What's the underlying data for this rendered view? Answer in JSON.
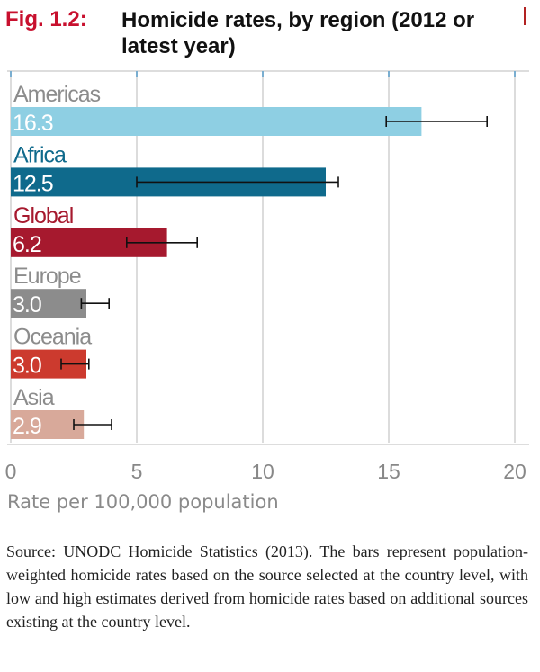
{
  "figure": {
    "label": "Fig. 1.2:",
    "title": "Homicide rates, by region (2012 or latest year)",
    "source": "Source: UNODC Homicide Statistics (2013). The bars represent population-weighted homicide rates based on the source selected at the country level, with low and high estimates derived from homicide rates based on additional sources existing at the country level."
  },
  "chart_data": {
    "type": "bar",
    "orientation": "horizontal",
    "xlabel": "Rate per 100,000 population",
    "xlim": [
      0,
      20
    ],
    "xticks": [
      0,
      5,
      10,
      15,
      20
    ],
    "grid": true,
    "categories": [
      "Americas",
      "Africa",
      "Global",
      "Europe",
      "Oceania",
      "Asia"
    ],
    "values": [
      16.3,
      12.5,
      6.2,
      3.0,
      3.0,
      2.9
    ],
    "value_labels": [
      "16.3",
      "12.5",
      "6.2",
      "3.0",
      "3.0",
      "2.9"
    ],
    "error_low": [
      14.9,
      5.0,
      4.6,
      2.8,
      2.0,
      2.5
    ],
    "error_high": [
      18.9,
      13.0,
      7.4,
      3.9,
      3.1,
      4.0
    ],
    "colors": [
      "#8ecfe3",
      "#0f6a8c",
      "#a6192e",
      "#8c8c8c",
      "#cc3a2e",
      "#d8a99a"
    ],
    "label_colors": [
      "#8c8c8c",
      "#0f6a8c",
      "#a6192e",
      "#8c8c8c",
      "#8c8c8c",
      "#8c8c8c"
    ]
  }
}
